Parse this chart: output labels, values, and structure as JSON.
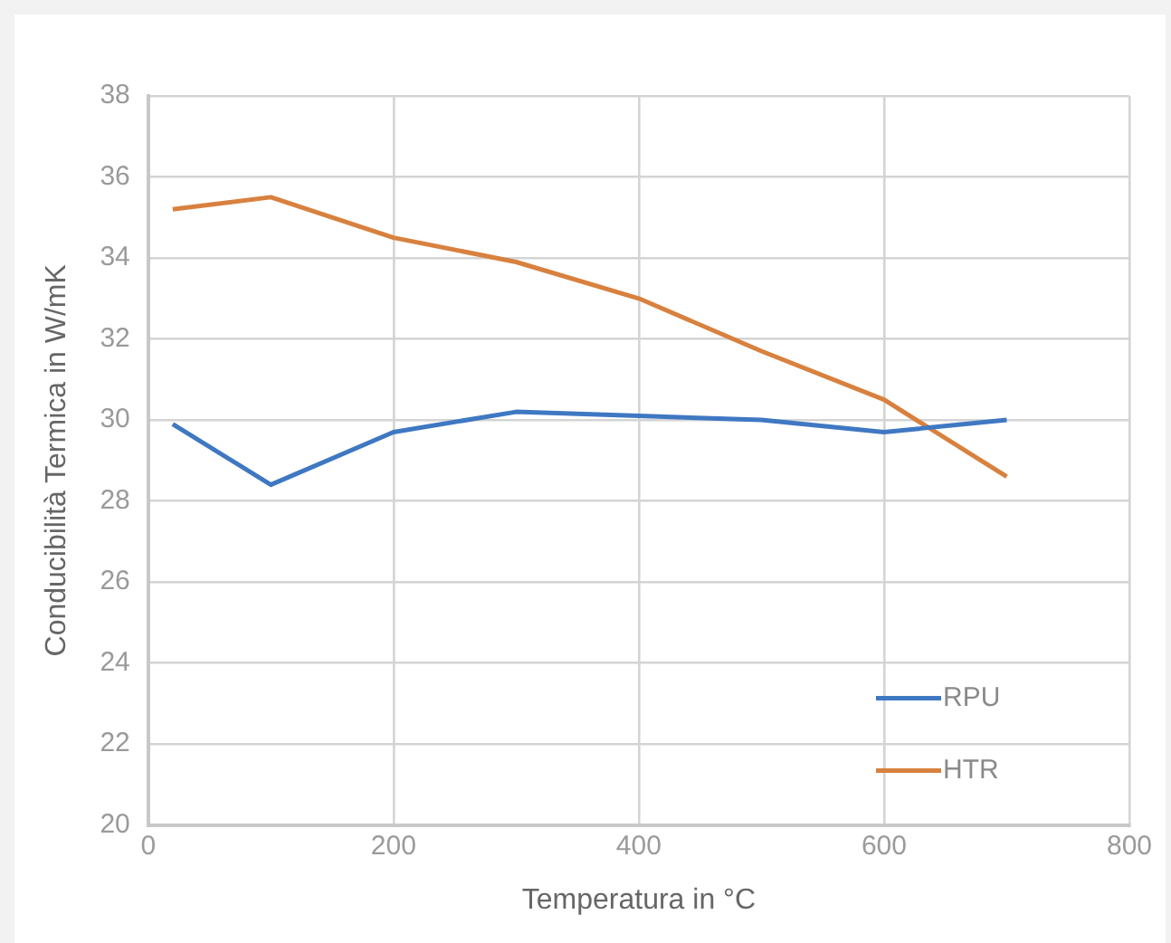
{
  "chart_data": {
    "type": "line",
    "xlabel": "Temperatura in °C",
    "ylabel": "Conducibilità Termica in W/mK",
    "x": [
      20,
      100,
      200,
      300,
      400,
      500,
      600,
      700
    ],
    "series": [
      {
        "name": "RPU",
        "color": "#3f78c2",
        "values": [
          29.9,
          28.4,
          29.7,
          30.2,
          30.1,
          30.0,
          29.7,
          30.0
        ]
      },
      {
        "name": "HTR",
        "color": "#d8813f",
        "values": [
          35.2,
          35.5,
          34.5,
          33.9,
          33.0,
          31.7,
          30.5,
          28.6
        ]
      }
    ],
    "xlim": [
      0,
      800
    ],
    "xticks": [
      0,
      200,
      400,
      600,
      800
    ],
    "ylim": [
      20,
      38
    ],
    "yticks": [
      20,
      22,
      24,
      26,
      28,
      30,
      32,
      34,
      36,
      38
    ],
    "grid": true,
    "legend": "bottom right",
    "marker": "none",
    "line_style": "solid"
  }
}
